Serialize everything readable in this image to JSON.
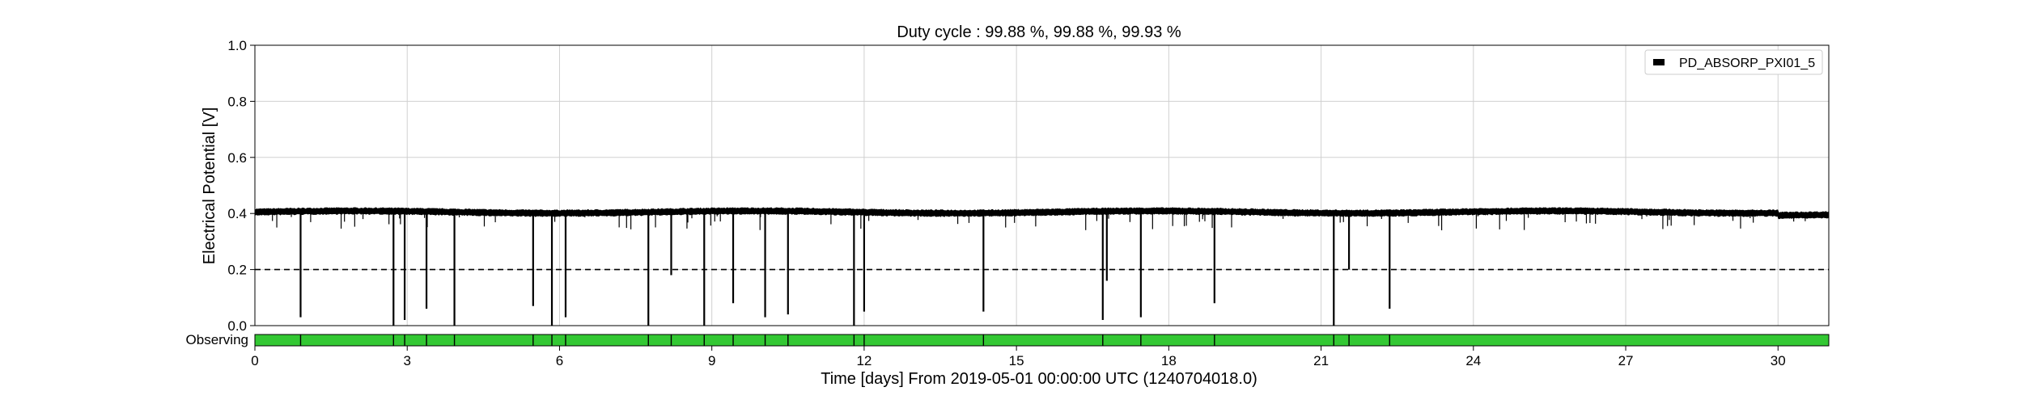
{
  "chart_data": {
    "type": "line",
    "title": "Duty cycle : 99.88 %, 99.88 %, 99.93 %",
    "xlabel": "Time [days] From 2019-05-01 00:00:00 UTC (1240704018.0)",
    "ylabel": "Electrical Potential [V]",
    "xlim": [
      0,
      31
    ],
    "ylim": [
      0,
      1.0
    ],
    "xticks": [
      0,
      3,
      6,
      9,
      12,
      15,
      18,
      21,
      24,
      27,
      30
    ],
    "yticks": [
      0.0,
      0.2,
      0.4,
      0.6,
      0.8,
      1.0
    ],
    "grid": true,
    "legend": {
      "placement": "top-right",
      "entries": [
        "PD_ABSORP_PXI01_5"
      ]
    },
    "threshold": 0.2,
    "series": [
      {
        "name": "PD_ABSORP_PXI01_5",
        "color": "#000000",
        "baseline": 0.405,
        "dips": [
          [
            0.9,
            0.03
          ],
          [
            2.73,
            0.0
          ],
          [
            2.95,
            0.02
          ],
          [
            3.38,
            0.06
          ],
          [
            3.93,
            0.0
          ],
          [
            5.48,
            0.07
          ],
          [
            5.85,
            0.0
          ],
          [
            6.12,
            0.03
          ],
          [
            7.75,
            0.0
          ],
          [
            8.2,
            0.18
          ],
          [
            8.85,
            0.0
          ],
          [
            9.42,
            0.08
          ],
          [
            10.05,
            0.03
          ],
          [
            10.5,
            0.04
          ],
          [
            11.8,
            0.0
          ],
          [
            12.0,
            0.05
          ],
          [
            14.35,
            0.05
          ],
          [
            16.7,
            0.02
          ],
          [
            16.78,
            0.16
          ],
          [
            17.45,
            0.03
          ],
          [
            18.9,
            0.08
          ],
          [
            21.25,
            0.0
          ],
          [
            21.55,
            0.2
          ],
          [
            22.35,
            0.06
          ]
        ]
      }
    ],
    "state_bar": {
      "label": "Observing",
      "color": "#33c833",
      "breaks": [
        0.9,
        2.73,
        2.95,
        3.38,
        3.93,
        5.48,
        5.85,
        6.12,
        7.75,
        8.2,
        8.85,
        9.42,
        10.05,
        10.5,
        11.8,
        12.0,
        14.35,
        16.7,
        17.45,
        18.9,
        21.25,
        21.55,
        22.35
      ]
    }
  }
}
